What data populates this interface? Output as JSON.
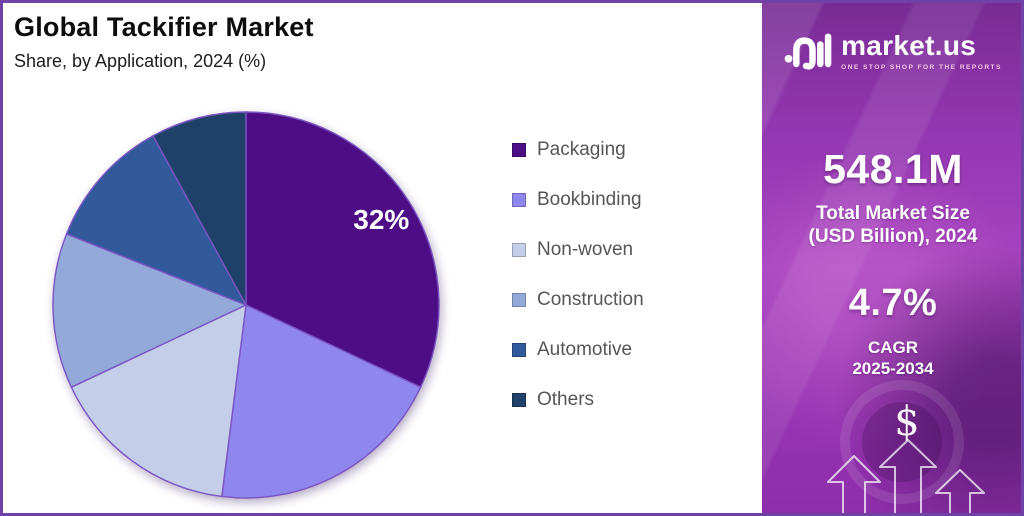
{
  "page": {
    "title": "Global Tackifier Market",
    "subtitle": "Share, by Application, 2024 (%)"
  },
  "chart_data": {
    "type": "pie",
    "title": "Global Tackifier Market",
    "subtitle": "Share, by Application, 2024 (%)",
    "unit": "%",
    "legend_position": "right",
    "rotation_start": "top",
    "direction": "clockwise",
    "slice_border_color": "#7b54c4",
    "series": [
      {
        "name": "Packaging",
        "value": 32,
        "label": "32%",
        "color": "#4d0e85"
      },
      {
        "name": "Bookbinding",
        "value": 20,
        "label": "",
        "color": "#8f86ee"
      },
      {
        "name": "Non-woven",
        "value": 16,
        "label": "",
        "color": "#c4cee9"
      },
      {
        "name": "Construction",
        "value": 13,
        "label": "",
        "color": "#92a9d9"
      },
      {
        "name": "Automotive",
        "value": 11,
        "label": "",
        "color": "#32599b"
      },
      {
        "name": "Others",
        "value": 8,
        "label": "",
        "color": "#1f4068"
      }
    ]
  },
  "sidebar": {
    "brand": "market.us",
    "tagline": "ONE STOP SHOP FOR THE REPORTS",
    "market_size_value": "548.1M",
    "market_size_label": {
      "line1": "Total Market Size",
      "line2": "(USD Billion), 2024"
    },
    "cagr_value": "4.7%",
    "cagr_label": {
      "line1": "CAGR",
      "line2": "2025-2034"
    },
    "dollar_symbol": "$",
    "background_color": "#9636b2",
    "text_color": "#ffffff"
  }
}
